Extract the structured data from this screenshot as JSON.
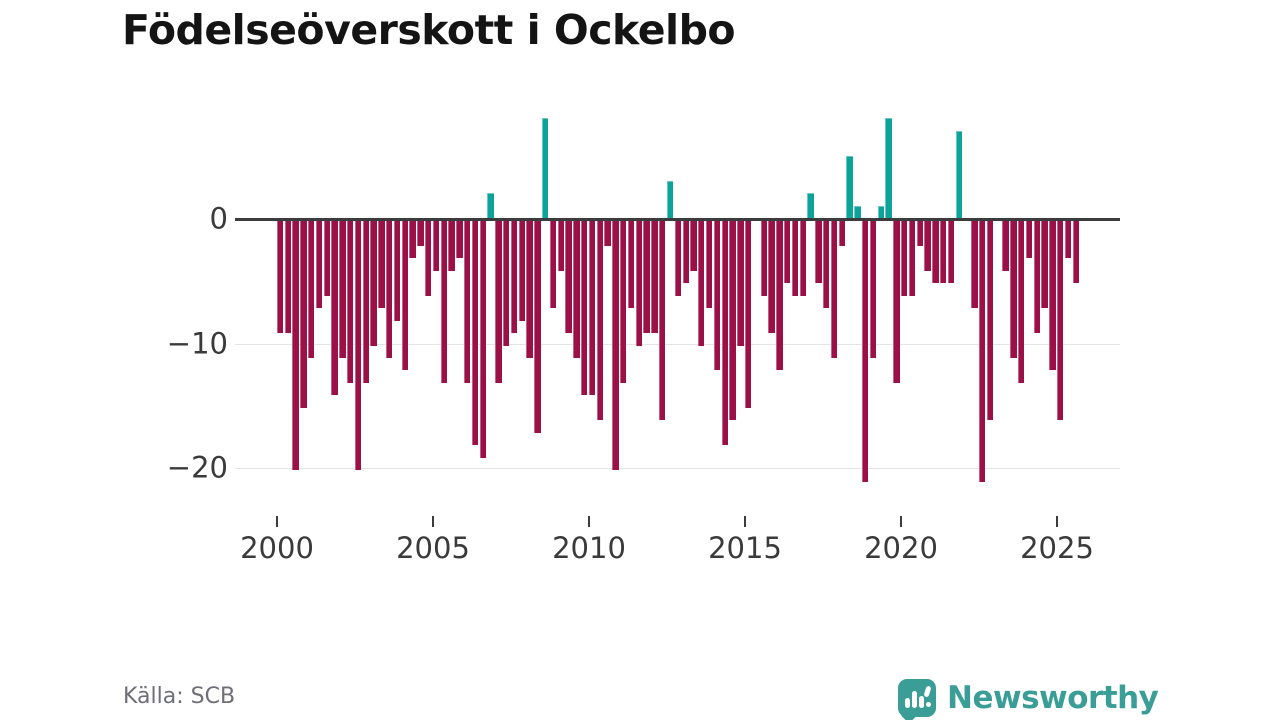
{
  "title": "Födelseöverskott i Ockelbo",
  "source": "Källa: SCB",
  "brand": {
    "name": "Newsworthy"
  },
  "colors": {
    "negative_bar": "#9b1147",
    "positive_bar": "#0ca39a",
    "axis_line": "#3c3c3c",
    "gridline": "#e4e4e4",
    "tick_label": "#3a3a3a",
    "source_text": "#6e6e78",
    "brand_teal": "#3a9e97",
    "background": "#ffffff"
  },
  "chart_data": {
    "type": "bar",
    "title": "Födelseöverskott i Ockelbo",
    "frequency": "quarterly",
    "x_start": "2000 Q1",
    "x_end": "2025 Q3",
    "x_tick_labels": [
      "2000",
      "2005",
      "2010",
      "2015",
      "2020",
      "2025"
    ],
    "y_tick_labels": [
      "0",
      "−10",
      "−20"
    ],
    "y_ticks": [
      0,
      -10,
      -20
    ],
    "ylim": [
      -22,
      9
    ],
    "grid": "horizontal",
    "legend": "none",
    "values": [
      -9,
      -9,
      -20,
      -15,
      -11,
      -7,
      -6,
      -14,
      -11,
      -13,
      -20,
      -13,
      -10,
      -7,
      -11,
      -8,
      -12,
      -3,
      -2,
      -6,
      -4,
      -13,
      -4,
      -3,
      -13,
      -18,
      -19,
      2,
      -13,
      -10,
      -9,
      -8,
      -11,
      -17,
      8,
      -7,
      -4,
      -9,
      -11,
      -14,
      -14,
      -16,
      -2,
      -20,
      -13,
      -7,
      -10,
      -9,
      -9,
      -16,
      3,
      -6,
      -5,
      -4,
      -10,
      -7,
      -12,
      -18,
      -16,
      -10,
      -15,
      0,
      -6,
      -9,
      -12,
      -5,
      -6,
      -6,
      2,
      -5,
      -7,
      -11,
      -2,
      5,
      1,
      -21,
      -11,
      1,
      8,
      -13,
      -6,
      -6,
      -2,
      -4,
      -5,
      -5,
      -5,
      7,
      0,
      -7,
      -21,
      -16,
      0,
      -4,
      -11,
      -13,
      -3,
      -9,
      -7,
      -12,
      -16,
      -3,
      -5
    ]
  }
}
